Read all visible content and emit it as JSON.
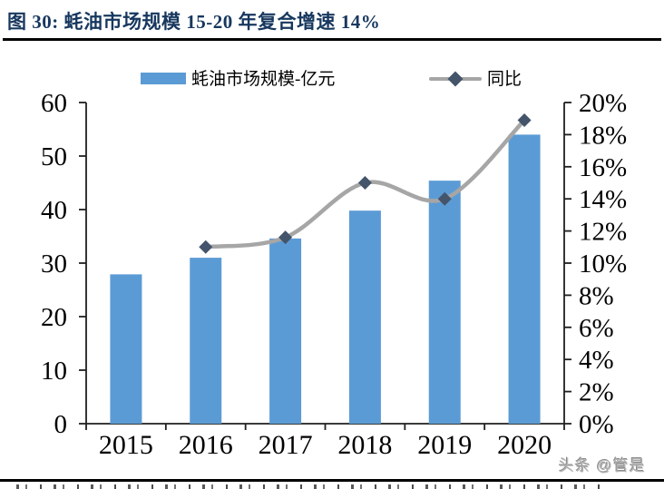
{
  "header": {
    "title": "图 30:  蚝油市场规模 15-20 年复合增速 14%"
  },
  "legend": {
    "bar": {
      "label": "蚝油市场规模-亿元"
    },
    "line": {
      "label": "同比"
    }
  },
  "watermark": "头条 @管是",
  "colors": {
    "bar": "#5B9BD5",
    "line": "#A6A6A6",
    "marker": "#44546A",
    "title": "#17375E",
    "axis": "#1f1f1f",
    "label": "#000000"
  },
  "chart_data": {
    "type": "bar",
    "subtype": "bar-line-combo",
    "title": "蚝油市场规模 15-20 年复合增速 14%",
    "categories": [
      "2015",
      "2016",
      "2017",
      "2018",
      "2019",
      "2020"
    ],
    "series": [
      {
        "name": "蚝油市场规模-亿元",
        "type": "bar",
        "axis": "left",
        "values": [
          27.9,
          31,
          34.6,
          39.8,
          45.4,
          54
        ]
      },
      {
        "name": "同比",
        "type": "line",
        "axis": "right",
        "unit": "%",
        "values": [
          null,
          11,
          11.6,
          15,
          14,
          18.9
        ]
      }
    ],
    "left_axis": {
      "min": 0,
      "max": 60,
      "step": 10,
      "ticks": [
        "0",
        "10",
        "20",
        "30",
        "40",
        "50",
        "60"
      ]
    },
    "right_axis": {
      "min": 0,
      "max": 20,
      "step": 2,
      "ticks": [
        "0%",
        "2%",
        "4%",
        "6%",
        "8%",
        "10%",
        "12%",
        "14%",
        "16%",
        "18%",
        "20%"
      ]
    },
    "grid": false,
    "legend_position": "top-center"
  }
}
